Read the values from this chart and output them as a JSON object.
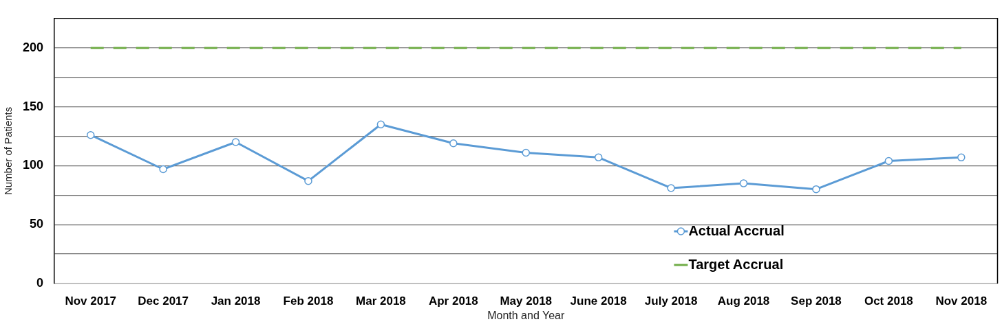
{
  "chart_data": {
    "type": "line",
    "categories": [
      "Nov 2017",
      "Dec 2017",
      "Jan 2018",
      "Feb 2018",
      "Mar 2018",
      "Apr 2018",
      "May 2018",
      "June 2018",
      "July 2018",
      "Aug 2018",
      "Sep 2018",
      "Oct 2018",
      "Nov 2018"
    ],
    "series": [
      {
        "name": "Actual Accrual",
        "color": "#5b9bd5",
        "values": [
          126,
          97,
          120,
          87,
          135,
          119,
          111,
          107,
          81,
          85,
          80,
          104,
          107
        ],
        "marker": "circle",
        "line_style": "solid"
      },
      {
        "name": "Target Accrual",
        "color": "#70ad47",
        "values": [
          200,
          200,
          200,
          200,
          200,
          200,
          200,
          200,
          200,
          200,
          200,
          200,
          200
        ],
        "marker": "none",
        "line_style": "dashed"
      }
    ],
    "xlabel": "Month and Year",
    "ylabel": "Number of Patients",
    "ylim": [
      0,
      225
    ],
    "yticks": [
      0,
      {
        "value": 25,
        "label": null
      },
      50,
      {
        "value": 75,
        "label": null
      },
      100,
      {
        "value": 125,
        "label": null
      },
      150,
      {
        "value": 175,
        "label": null
      },
      200
    ],
    "grid": "y",
    "legend": "bottom right"
  }
}
